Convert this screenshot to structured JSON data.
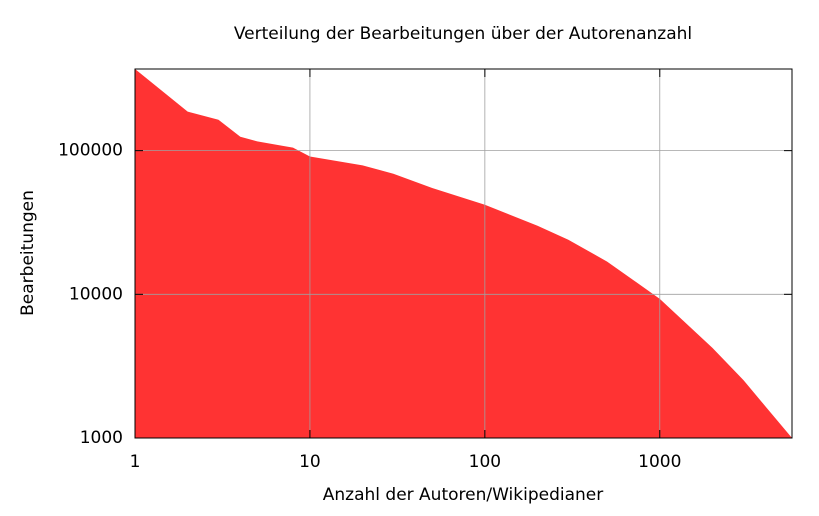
{
  "chart_data": {
    "type": "area",
    "title": "Verteilung der Bearbeitungen über der Autorenanzahl",
    "x_label": "Anzahl der Autoren/Wikipedianer",
    "y_label": "Bearbeitungen",
    "x": [
      1,
      2,
      3,
      4,
      5,
      7,
      8,
      10,
      20,
      30,
      50,
      100,
      200,
      300,
      500,
      1000,
      2000,
      3000,
      4000,
      5700
    ],
    "values": [
      370000,
      187000,
      164000,
      125000,
      116000,
      108000,
      105000,
      91000,
      79000,
      69000,
      55000,
      42000,
      30000,
      24000,
      16900,
      9300,
      4240,
      2540,
      1670,
      1000
    ],
    "color": "#ff3333",
    "xlim": [
      1,
      5700
    ],
    "ylim": [
      1000,
      370000
    ],
    "xticks": [
      1,
      10,
      100,
      1000
    ],
    "yticks": [
      1000,
      10000,
      100000
    ],
    "xscale": "log",
    "yscale": "log",
    "grid": true
  }
}
